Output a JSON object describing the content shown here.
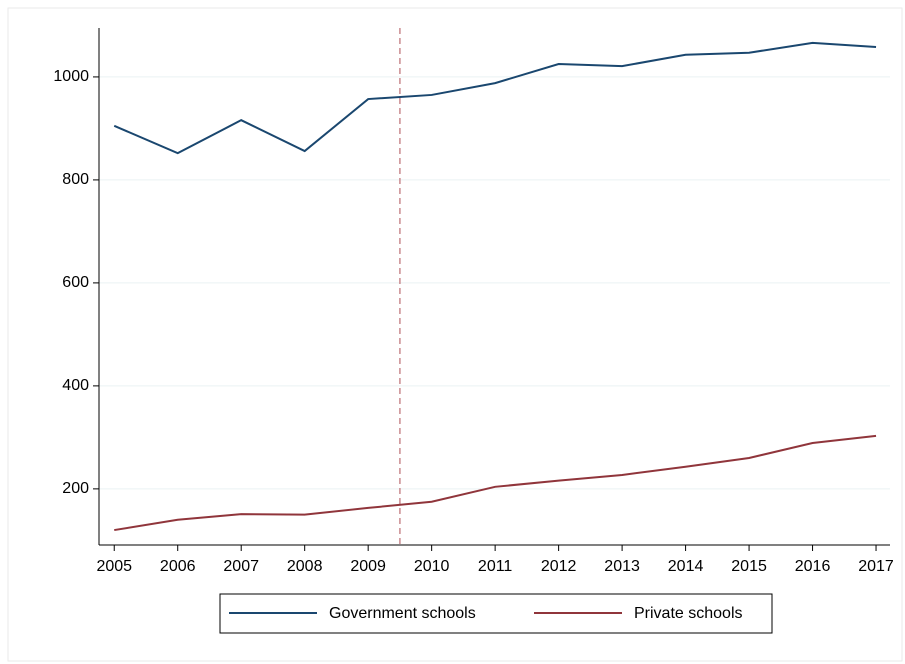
{
  "chart_data": {
    "type": "line",
    "x": [
      2005,
      2006,
      2007,
      2008,
      2009,
      2010,
      2011,
      2012,
      2013,
      2014,
      2015,
      2016,
      2017
    ],
    "series": [
      {
        "name": "Government schools",
        "color": "#1a476f",
        "values": [
          905,
          852,
          916,
          856,
          957,
          965,
          988,
          1025,
          1021,
          1043,
          1047,
          1066,
          1058
        ]
      },
      {
        "name": "Private schools",
        "color": "#90353b",
        "values": [
          120,
          140,
          151,
          150,
          163,
          175,
          204,
          216,
          227,
          243,
          260,
          289,
          303
        ]
      }
    ],
    "xlim": [
      2004.76,
      2017.22
    ],
    "xticks": [
      2005,
      2006,
      2007,
      2008,
      2009,
      2010,
      2011,
      2012,
      2013,
      2014,
      2015,
      2016,
      2017
    ],
    "ylim": [
      91,
      1095
    ],
    "yticks": [
      200,
      400,
      600,
      800,
      1000
    ],
    "grid": true,
    "vline": 2009.5,
    "vline_color": "#c98a8f",
    "legend": "bottom"
  }
}
